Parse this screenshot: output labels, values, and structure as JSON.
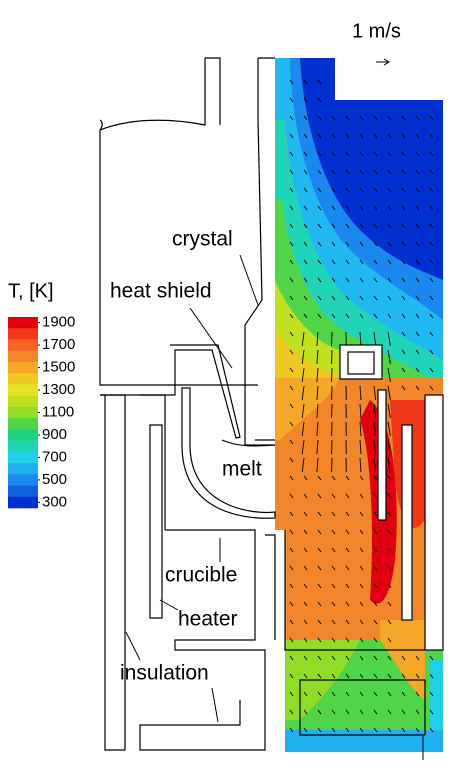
{
  "scale_label": "1 m/s",
  "colorbar": {
    "title": "T, [K]",
    "ticks": [
      1900,
      1700,
      1500,
      1300,
      1100,
      900,
      700,
      500,
      300
    ],
    "colors": [
      "#e00010",
      "#f03818",
      "#f56422",
      "#f2862a",
      "#f5a828",
      "#f0c822",
      "#e4e424",
      "#c0e020",
      "#90dc28",
      "#50d448",
      "#20d080",
      "#20d4b8",
      "#20d0e8",
      "#20b0f0",
      "#1a88ee",
      "#1060e0",
      "#0030d0"
    ]
  },
  "labels": [
    "crystal",
    "heat shield",
    "melt",
    "crucible",
    "heater",
    "insulation"
  ]
}
